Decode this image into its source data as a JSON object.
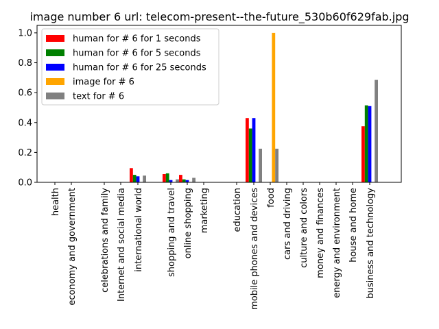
{
  "chart_data": {
    "type": "bar",
    "title": "image number 6 url: telecom-present--the-future_530b60f629fab.jpg",
    "xlabel": "",
    "ylabel": "",
    "ylim": [
      0,
      1.05
    ],
    "yticks": [
      "0.0",
      "0.2",
      "0.4",
      "0.6",
      "0.8",
      "1.0"
    ],
    "grid": false,
    "legend_position": "top-left",
    "categories": [
      "health",
      "economy and government",
      "celebrations and family",
      "Internet and social media",
      "international world",
      "shopping and travel",
      "online shopping",
      "marketing",
      "education",
      "mobile phones and devices",
      "food",
      "cars and driving",
      "culture and colors",
      "money and finances",
      "energy and environment",
      "house and home",
      "business and technology"
    ],
    "series": [
      {
        "name": "human for # 6 for 1 seconds",
        "color": "#ff0000",
        "values": [
          0,
          0,
          0,
          0,
          0.095,
          0.055,
          0.05,
          0,
          0,
          0.43,
          0,
          0,
          0,
          0,
          0,
          0,
          0.375
        ]
      },
      {
        "name": "human for # 6 for 5 seconds",
        "color": "#008000",
        "values": [
          0,
          0,
          0,
          0,
          0.05,
          0.06,
          0.02,
          0,
          0,
          0.36,
          0,
          0,
          0,
          0,
          0,
          0,
          0.515
        ]
      },
      {
        "name": "human for # 6 for 25 seconds",
        "color": "#0000ff",
        "values": [
          0,
          0,
          0,
          0,
          0.04,
          0.015,
          0.015,
          0,
          0,
          0.43,
          0,
          0,
          0,
          0,
          0,
          0,
          0.51
        ]
      },
      {
        "name": "image for # 6",
        "color": "#ffa500",
        "values": [
          0,
          0,
          0,
          0,
          0,
          0,
          0,
          0,
          0,
          0,
          1.0,
          0,
          0,
          0,
          0,
          0,
          0
        ]
      },
      {
        "name": "text for # 6",
        "color": "#808080",
        "values": [
          0,
          0,
          0,
          0,
          0.045,
          0.02,
          0.03,
          0,
          0,
          0.225,
          0.225,
          0,
          0,
          0,
          0,
          0,
          0.685
        ]
      }
    ]
  }
}
